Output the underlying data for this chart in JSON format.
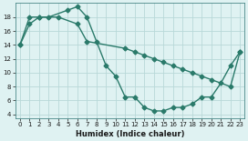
{
  "xlabel": "Humidex (Indice chaleur)",
  "line1_x": [
    0,
    1,
    2,
    3,
    5,
    6,
    7,
    8,
    9,
    10,
    11,
    12,
    13,
    14,
    15,
    16,
    17,
    18,
    19,
    20,
    21,
    22,
    23
  ],
  "line1_y": [
    14,
    17,
    18,
    18,
    19,
    19.5,
    18,
    14.5,
    11,
    9.5,
    6.5,
    6.5,
    5,
    4.5,
    4.5,
    5,
    5,
    5.5,
    6.5,
    6.5,
    8.5,
    11,
    13
  ],
  "line2_x": [
    0,
    1,
    2,
    4,
    6,
    7,
    11,
    12,
    13,
    14,
    15,
    16,
    17,
    18,
    19,
    20,
    22,
    23
  ],
  "line2_y": [
    14,
    18,
    18,
    18,
    17,
    14.5,
    13.5,
    13,
    12.5,
    12,
    11.5,
    11,
    10.5,
    10,
    9.5,
    9,
    8,
    13
  ],
  "line_color": "#2a7a6a",
  "bg_color": "#dff2f2",
  "grid_color": "#b8d8d8",
  "xlim": [
    -0.5,
    23.5
  ],
  "ylim": [
    3.5,
    20
  ],
  "yticks": [
    4,
    6,
    8,
    10,
    12,
    14,
    16,
    18
  ],
  "xtick_labels": [
    "0",
    "1",
    "2",
    "3",
    "4",
    "5",
    "6",
    "7",
    "8",
    "9",
    "10",
    "11",
    "12",
    "13",
    "14",
    "15",
    "16",
    "17",
    "18",
    "19",
    "20",
    "21",
    "22",
    "23"
  ],
  "xticks": [
    0,
    1,
    2,
    3,
    4,
    5,
    6,
    7,
    8,
    9,
    10,
    11,
    12,
    13,
    14,
    15,
    16,
    17,
    18,
    19,
    20,
    21,
    22,
    23
  ],
  "marker": "D",
  "markersize": 2.5,
  "linewidth": 1.0
}
